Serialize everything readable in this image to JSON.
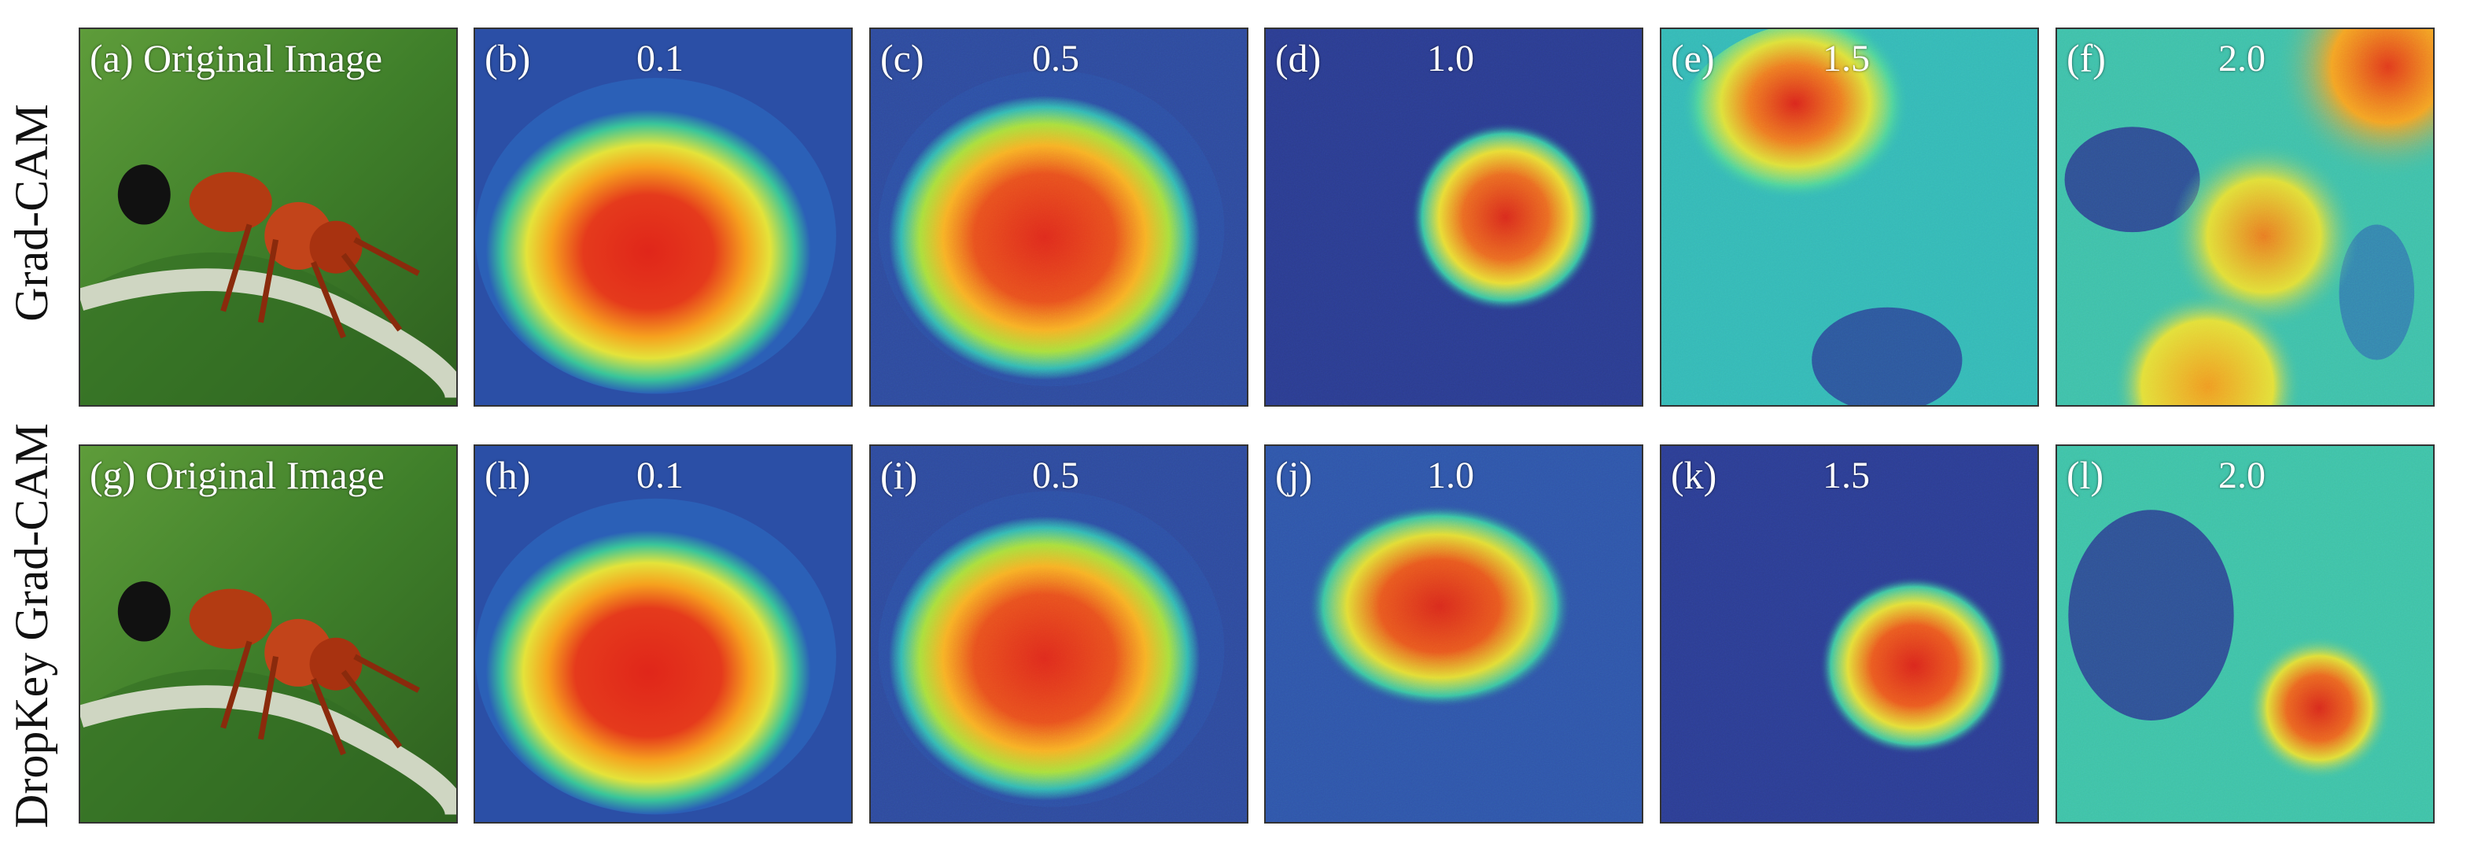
{
  "rows": [
    {
      "label": "Grad-CAM",
      "panels": [
        {
          "tag": "(a) Original Image",
          "value": "",
          "kind": "photo"
        },
        {
          "tag": "(b)",
          "value": "0.1",
          "kind": "heat"
        },
        {
          "tag": "(c)",
          "value": "0.5",
          "kind": "heat"
        },
        {
          "tag": "(d)",
          "value": "1.0",
          "kind": "heat"
        },
        {
          "tag": "(e)",
          "value": "1.5",
          "kind": "heat"
        },
        {
          "tag": "(f)",
          "value": "2.0",
          "kind": "heat"
        }
      ]
    },
    {
      "label": "DropKey Grad-CAM",
      "panels": [
        {
          "tag": "(g) Original Image",
          "value": "",
          "kind": "photo"
        },
        {
          "tag": "(h)",
          "value": "0.1",
          "kind": "heat"
        },
        {
          "tag": "(i)",
          "value": "0.5",
          "kind": "heat"
        },
        {
          "tag": "(j)",
          "value": "1.0",
          "kind": "heat"
        },
        {
          "tag": "(k)",
          "value": "1.5",
          "kind": "heat"
        },
        {
          "tag": "(l)",
          "value": "2.0",
          "kind": "heat"
        }
      ]
    }
  ]
}
